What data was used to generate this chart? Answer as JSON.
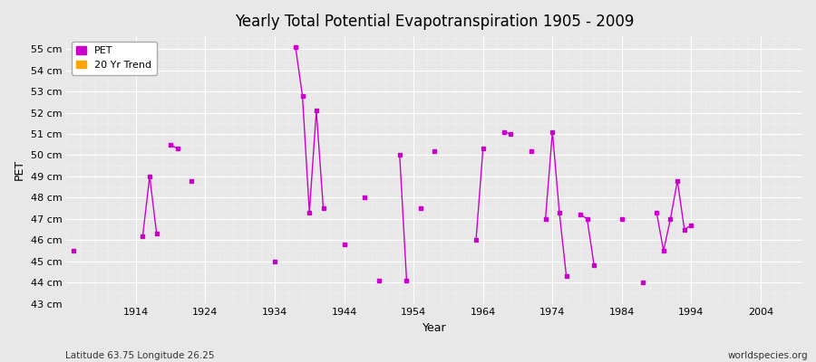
{
  "title": "Yearly Total Potential Evapotranspiration 1905 - 2009",
  "xlabel": "Year",
  "ylabel": "PET",
  "subtitle": "Latitude 63.75 Longitude 26.25",
  "watermark": "worldspecies.org",
  "ylim": [
    43,
    55.6
  ],
  "xlim": [
    1904,
    2010
  ],
  "yticks": [
    43,
    44,
    45,
    46,
    47,
    48,
    49,
    50,
    51,
    52,
    53,
    54,
    55
  ],
  "ytick_labels": [
    "43 cm",
    "44 cm",
    "45 cm",
    "46 cm",
    "47 cm",
    "48 cm",
    "49 cm",
    "50 cm",
    "51 cm",
    "52 cm",
    "53 cm",
    "54 cm",
    "55 cm"
  ],
  "xticks": [
    1914,
    1924,
    1934,
    1944,
    1954,
    1964,
    1974,
    1984,
    1994,
    2004
  ],
  "background_color": "#e8e8e8",
  "plot_bg_color": "#e8e8e8",
  "line_color": "#cc00cc",
  "trend_color": "#ffa500",
  "pet_segments": [
    [
      [
        1905,
        45.5
      ]
    ],
    [
      [
        1915,
        46.2
      ],
      [
        1916,
        49.0
      ],
      [
        1917,
        46.3
      ]
    ],
    [
      [
        1919,
        50.5
      ],
      [
        1920,
        50.3
      ]
    ],
    [
      [
        1922,
        48.8
      ]
    ],
    [
      [
        1934,
        45.0
      ]
    ],
    [
      [
        1937,
        55.1
      ],
      [
        1938,
        52.8
      ],
      [
        1939,
        47.3
      ],
      [
        1940,
        52.1
      ],
      [
        1941,
        47.5
      ]
    ],
    [
      [
        1944,
        45.8
      ]
    ],
    [
      [
        1947,
        48.0
      ]
    ],
    [
      [
        1949,
        44.1
      ]
    ],
    [
      [
        1952,
        50.0
      ],
      [
        1953,
        44.1
      ]
    ],
    [
      [
        1955,
        47.5
      ]
    ],
    [
      [
        1957,
        50.2
      ]
    ],
    [
      [
        1963,
        46.0
      ],
      [
        1964,
        50.3
      ]
    ],
    [
      [
        1967,
        51.1
      ],
      [
        1968,
        51.0
      ]
    ],
    [
      [
        1971,
        50.2
      ]
    ],
    [
      [
        1973,
        47.0
      ],
      [
        1974,
        51.1
      ],
      [
        1975,
        47.3
      ],
      [
        1976,
        44.3
      ]
    ],
    [
      [
        1978,
        47.2
      ],
      [
        1979,
        47.0
      ],
      [
        1980,
        44.8
      ]
    ],
    [
      [
        1984,
        47.0
      ]
    ],
    [
      [
        1987,
        44.0
      ]
    ],
    [
      [
        1989,
        47.3
      ],
      [
        1990,
        45.5
      ],
      [
        1991,
        47.0
      ],
      [
        1992,
        48.8
      ],
      [
        1993,
        46.5
      ],
      [
        1994,
        46.7
      ]
    ]
  ],
  "legend_pet_color": "#cc00cc",
  "legend_trend_color": "#ffa500"
}
